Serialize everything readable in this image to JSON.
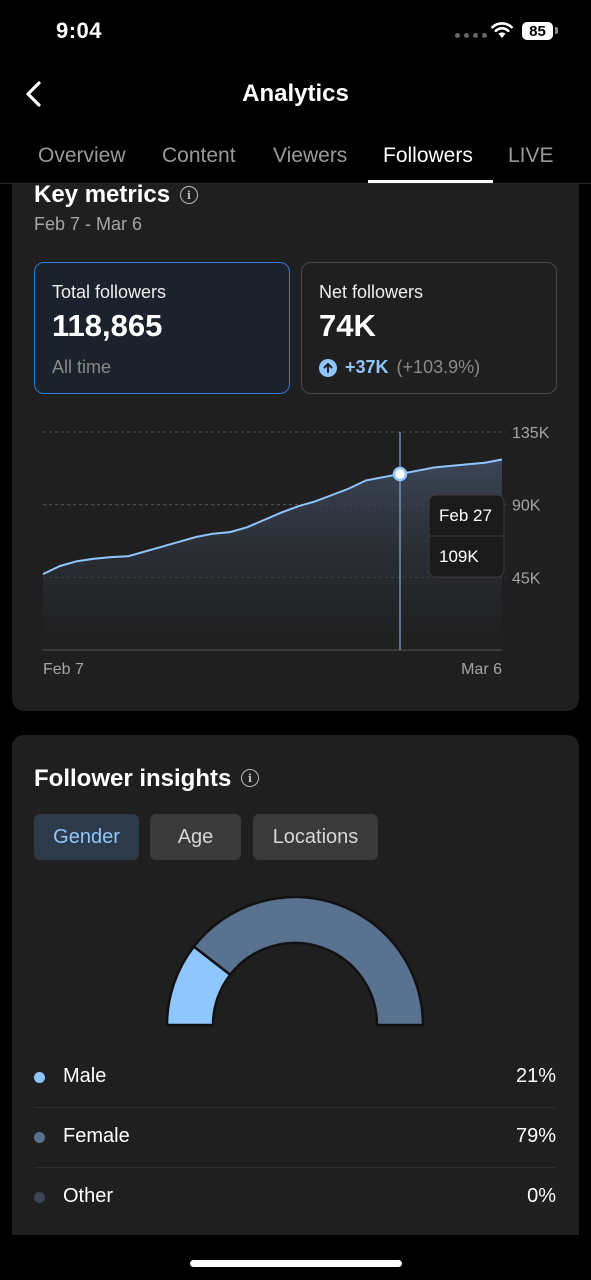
{
  "status_bar": {
    "time": "9:04",
    "battery": "85"
  },
  "header": {
    "title": "Analytics"
  },
  "tabs": [
    {
      "label": "Overview"
    },
    {
      "label": "Content"
    },
    {
      "label": "Viewers"
    },
    {
      "label": "Followers",
      "active": true
    },
    {
      "label": "LIVE"
    }
  ],
  "key_metrics": {
    "title": "Key metrics",
    "date_range": "Feb 7 - Mar 6",
    "total": {
      "label": "Total followers",
      "value": "118,865",
      "sub": "All time"
    },
    "net": {
      "label": "Net followers",
      "value": "74K",
      "delta": "+37K",
      "delta_pct": "(+103.9%)"
    }
  },
  "chart_data": {
    "type": "area",
    "x_start_label": "Feb 7",
    "x_end_label": "Mar 6",
    "y_ticks": [
      {
        "value": 135,
        "label": "135K"
      },
      {
        "value": 90,
        "label": "90K"
      },
      {
        "value": 45,
        "label": "45K"
      }
    ],
    "ylim": [
      0,
      135
    ],
    "values": [
      47,
      52,
      55,
      56.5,
      57.5,
      58,
      61,
      64,
      67,
      70,
      72,
      73,
      76,
      80.5,
      85,
      89,
      92,
      96,
      100,
      105,
      107,
      109,
      111,
      113,
      114,
      115,
      116,
      118
    ],
    "tooltip": {
      "index": 21,
      "date": "Feb 27",
      "value": "109K"
    },
    "colors": {
      "line": "#8fc6ff",
      "grid": "#555555"
    }
  },
  "insights": {
    "title": "Follower insights",
    "filters": [
      {
        "label": "Gender",
        "active": true
      },
      {
        "label": "Age",
        "active": false
      },
      {
        "label": "Locations",
        "active": false
      }
    ],
    "gender": [
      {
        "label": "Male",
        "value": "21%",
        "pct": 21,
        "color": "#8fc6ff"
      },
      {
        "label": "Female",
        "value": "79%",
        "pct": 79,
        "color": "#587290"
      },
      {
        "label": "Other",
        "value": "0%",
        "pct": 0,
        "color": "#3a4656"
      }
    ]
  }
}
